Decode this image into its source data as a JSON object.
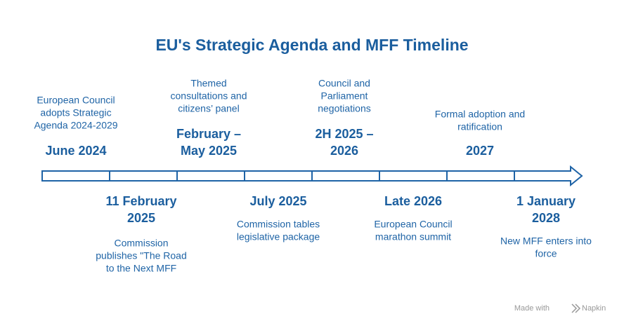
{
  "title": "EU's Strategic Agenda and MFF Timeline",
  "events": [
    {
      "date_lines": [
        "June 2024"
      ],
      "description_lines": [
        "European Council",
        "adopts Strategic",
        "Agenda 2024-2029"
      ]
    },
    {
      "date_lines": [
        "11 February",
        "2025"
      ],
      "description_lines": [
        "Commission",
        "publishes \"The Road",
        "to the Next MFF"
      ]
    },
    {
      "date_lines": [
        "February –",
        "May 2025"
      ],
      "description_lines": [
        "Themed",
        "consultations and",
        "citizens’ panel"
      ]
    },
    {
      "date_lines": [
        "July 2025"
      ],
      "description_lines": [
        "Commission tables",
        "legislative package"
      ]
    },
    {
      "date_lines": [
        "2H 2025 –",
        "2026"
      ],
      "description_lines": [
        "Council and",
        "Parliament",
        "negotiations"
      ]
    },
    {
      "date_lines": [
        "Late 2026"
      ],
      "description_lines": [
        "European Council",
        "marathon summit"
      ]
    },
    {
      "date_lines": [
        "2027"
      ],
      "description_lines": [
        "Formal adoption and",
        "ratification"
      ]
    },
    {
      "date_lines": [
        "1 January",
        "2028"
      ],
      "description_lines": [
        "New MFF enters into",
        "force"
      ]
    }
  ],
  "footer": {
    "prefix": "Made with",
    "brand": "Napkin"
  }
}
